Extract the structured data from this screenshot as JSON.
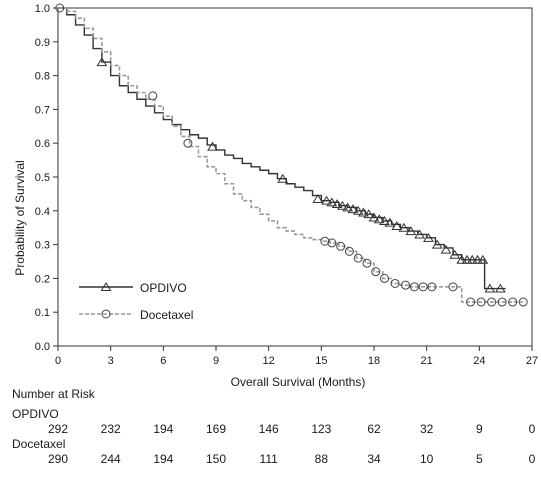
{
  "chart_data": {
    "type": "line",
    "chart_kind": "kaplan-meier survival curve",
    "xlabel": "Overall Survival (Months)",
    "ylabel": "Probability of Survival",
    "xlim": [
      0,
      27
    ],
    "ylim": [
      0,
      1.0
    ],
    "x_ticks": [
      "0",
      "3",
      "6",
      "9",
      "12",
      "15",
      "18",
      "21",
      "24",
      "27"
    ],
    "y_ticks": [
      "0.0",
      "0.1",
      "0.2",
      "0.3",
      "0.4",
      "0.5",
      "0.6",
      "0.7",
      "0.8",
      "0.9",
      "1.0"
    ],
    "grid": false,
    "legend_position": "bottom-left",
    "series": [
      {
        "name": "OPDIVO",
        "color": "#333333",
        "line_style": "solid",
        "marker": "triangle",
        "points": [
          [
            0,
            1.0
          ],
          [
            0.5,
            0.98
          ],
          [
            1,
            0.95
          ],
          [
            1.5,
            0.92
          ],
          [
            2,
            0.88
          ],
          [
            2.5,
            0.84
          ],
          [
            3,
            0.8
          ],
          [
            3.5,
            0.77
          ],
          [
            4,
            0.75
          ],
          [
            4.5,
            0.73
          ],
          [
            5,
            0.71
          ],
          [
            5.5,
            0.69
          ],
          [
            6,
            0.67
          ],
          [
            6.5,
            0.655
          ],
          [
            7,
            0.64
          ],
          [
            7.5,
            0.625
          ],
          [
            8,
            0.615
          ],
          [
            8.5,
            0.595
          ],
          [
            9,
            0.58
          ],
          [
            9.5,
            0.565
          ],
          [
            10,
            0.555
          ],
          [
            10.5,
            0.54
          ],
          [
            11,
            0.53
          ],
          [
            11.5,
            0.52
          ],
          [
            12,
            0.51
          ],
          [
            12.5,
            0.495
          ],
          [
            13,
            0.48
          ],
          [
            13.5,
            0.47
          ],
          [
            14,
            0.46
          ],
          [
            14.5,
            0.445
          ],
          [
            15,
            0.43
          ],
          [
            15.5,
            0.425
          ],
          [
            16,
            0.415
          ],
          [
            16.5,
            0.41
          ],
          [
            17,
            0.4
          ],
          [
            17.5,
            0.39
          ],
          [
            18,
            0.38
          ],
          [
            18.5,
            0.37
          ],
          [
            19,
            0.36
          ],
          [
            19.5,
            0.35
          ],
          [
            20,
            0.34
          ],
          [
            20.5,
            0.33
          ],
          [
            21,
            0.32
          ],
          [
            21.5,
            0.3
          ],
          [
            22,
            0.29
          ],
          [
            22.5,
            0.27
          ],
          [
            23,
            0.255
          ],
          [
            24,
            0.255
          ],
          [
            24.3,
            0.255
          ],
          [
            24.3,
            0.17
          ],
          [
            25.5,
            0.17
          ]
        ],
        "censor_marks": [
          [
            2.5,
            0.84
          ],
          [
            8.8,
            0.59
          ],
          [
            12.8,
            0.495
          ],
          [
            14.8,
            0.435
          ],
          [
            15.3,
            0.43
          ],
          [
            15.6,
            0.425
          ],
          [
            15.9,
            0.42
          ],
          [
            16.2,
            0.415
          ],
          [
            16.5,
            0.41
          ],
          [
            16.8,
            0.405
          ],
          [
            17.1,
            0.4
          ],
          [
            17.4,
            0.395
          ],
          [
            17.7,
            0.39
          ],
          [
            18.0,
            0.38
          ],
          [
            18.3,
            0.375
          ],
          [
            18.6,
            0.37
          ],
          [
            18.9,
            0.365
          ],
          [
            19.3,
            0.355
          ],
          [
            19.7,
            0.35
          ],
          [
            20.1,
            0.34
          ],
          [
            20.6,
            0.33
          ],
          [
            21.1,
            0.32
          ],
          [
            21.6,
            0.3
          ],
          [
            22.1,
            0.285
          ],
          [
            22.6,
            0.27
          ],
          [
            23.0,
            0.255
          ],
          [
            23.3,
            0.255
          ],
          [
            23.6,
            0.255
          ],
          [
            23.9,
            0.255
          ],
          [
            24.2,
            0.255
          ],
          [
            24.6,
            0.17
          ],
          [
            25.2,
            0.17
          ]
        ]
      },
      {
        "name": "Docetaxel",
        "color": "#9a9a9a",
        "line_style": "dashed",
        "marker": "circle",
        "points": [
          [
            0,
            1.0
          ],
          [
            0.5,
            0.99
          ],
          [
            1,
            0.97
          ],
          [
            1.5,
            0.94
          ],
          [
            2,
            0.91
          ],
          [
            2.5,
            0.87
          ],
          [
            3,
            0.83
          ],
          [
            3.5,
            0.8
          ],
          [
            4,
            0.77
          ],
          [
            4.5,
            0.75
          ],
          [
            5,
            0.73
          ],
          [
            5.5,
            0.71
          ],
          [
            6,
            0.68
          ],
          [
            6.5,
            0.65
          ],
          [
            7,
            0.62
          ],
          [
            7.5,
            0.59
          ],
          [
            8,
            0.56
          ],
          [
            8.5,
            0.53
          ],
          [
            9,
            0.51
          ],
          [
            9.5,
            0.48
          ],
          [
            10,
            0.45
          ],
          [
            10.5,
            0.43
          ],
          [
            11,
            0.41
          ],
          [
            11.5,
            0.39
          ],
          [
            12,
            0.37
          ],
          [
            12.5,
            0.35
          ],
          [
            13,
            0.34
          ],
          [
            13.5,
            0.33
          ],
          [
            14,
            0.32
          ],
          [
            14.5,
            0.315
          ],
          [
            15,
            0.31
          ],
          [
            15.5,
            0.305
          ],
          [
            16,
            0.295
          ],
          [
            16.5,
            0.28
          ],
          [
            17,
            0.26
          ],
          [
            17.5,
            0.245
          ],
          [
            18,
            0.22
          ],
          [
            18.5,
            0.2
          ],
          [
            19,
            0.185
          ],
          [
            19.5,
            0.18
          ],
          [
            20,
            0.175
          ],
          [
            21,
            0.175
          ],
          [
            21.5,
            0.175
          ],
          [
            22,
            0.175
          ],
          [
            22.5,
            0.175
          ],
          [
            23,
            0.13
          ],
          [
            26.5,
            0.13
          ]
        ],
        "censor_marks": [
          [
            0.1,
            1.0
          ],
          [
            5.4,
            0.74
          ],
          [
            7.4,
            0.6
          ],
          [
            15.2,
            0.31
          ],
          [
            15.6,
            0.305
          ],
          [
            16.1,
            0.295
          ],
          [
            16.6,
            0.28
          ],
          [
            17.1,
            0.26
          ],
          [
            17.6,
            0.245
          ],
          [
            18.1,
            0.22
          ],
          [
            18.6,
            0.2
          ],
          [
            19.2,
            0.185
          ],
          [
            19.8,
            0.18
          ],
          [
            20.3,
            0.175
          ],
          [
            20.8,
            0.175
          ],
          [
            21.3,
            0.175
          ],
          [
            22.5,
            0.175
          ],
          [
            23.5,
            0.13
          ],
          [
            24.1,
            0.13
          ],
          [
            24.7,
            0.13
          ],
          [
            25.3,
            0.13
          ],
          [
            25.9,
            0.13
          ],
          [
            26.5,
            0.13
          ]
        ]
      }
    ]
  },
  "risk_table": {
    "title": "Number at Risk",
    "rows": [
      {
        "label": "OPDIVO",
        "values": [
          "292",
          "232",
          "194",
          "169",
          "146",
          "123",
          "62",
          "32",
          "9",
          "0"
        ]
      },
      {
        "label": "Docetaxel",
        "values": [
          "290",
          "244",
          "194",
          "150",
          "111",
          "88",
          "34",
          "10",
          "5",
          "0"
        ]
      }
    ]
  }
}
